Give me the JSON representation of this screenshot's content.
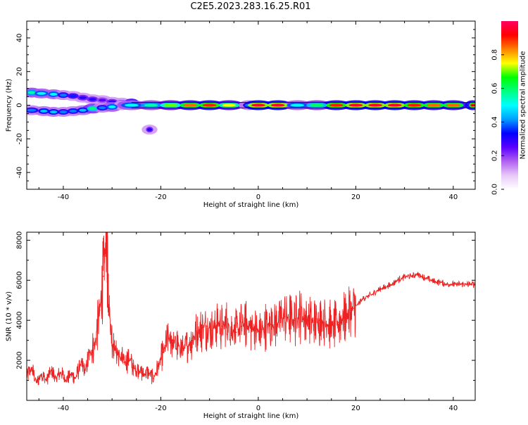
{
  "figure": {
    "title": "C2E5.2023.283.16.25.R01"
  },
  "chart_data": [
    {
      "type": "heatmap",
      "title": "",
      "xlabel": "Height of straight line (km)",
      "ylabel": "Frequency (Hz)",
      "xlim": [
        -47.5,
        44.5
      ],
      "ylim": [
        -50,
        50
      ],
      "xticks": [
        -40,
        -20,
        0,
        20,
        40
      ],
      "yticks": [
        -40,
        -20,
        0,
        20,
        40
      ],
      "grid": false,
      "colorbar": {
        "label": "Normalized spectral amplitude",
        "range": [
          0,
          1
        ],
        "ticks": [
          0.0,
          0.2,
          0.4,
          0.6,
          0.8
        ],
        "colormap": [
          "#ffffff",
          "#e8c8f8",
          "#b060f0",
          "#5a00ff",
          "#0000ff",
          "#00a0ff",
          "#00ffff",
          "#00ff80",
          "#00ff00",
          "#ffff00",
          "#ff8000",
          "#ff0000",
          "#ff0060"
        ]
      },
      "features": [
        {
          "name": "upper branch",
          "x": [
            -46.5,
            -44.5,
            -42,
            -40,
            -38,
            -36,
            -34,
            -32,
            -30,
            -28,
            -26
          ],
          "y": [
            7.5,
            7,
            6.5,
            6,
            5.5,
            4.5,
            3.5,
            3,
            2,
            1.5,
            1
          ],
          "amplitude": [
            0.55,
            0.5,
            0.5,
            0.4,
            0.35,
            0.3,
            0.3,
            0.25,
            0.3,
            0.3,
            0.8
          ]
        },
        {
          "name": "lower branch",
          "x": [
            -46.5,
            -44,
            -42,
            -40,
            -38,
            -36,
            -34,
            -32,
            -30,
            -28
          ],
          "y": [
            -3,
            -3.5,
            -4,
            -4,
            -3.5,
            -3,
            -2,
            -1.5,
            -1,
            0
          ],
          "amplitude": [
            0.4,
            0.45,
            0.45,
            0.4,
            0.4,
            0.45,
            0.6,
            0.4,
            0.5,
            0.3
          ]
        },
        {
          "name": "central line",
          "x": [
            -26,
            -22,
            -18,
            -14,
            -10,
            -6,
            -2,
            0,
            4,
            8,
            12,
            16,
            20,
            24,
            28,
            32,
            36,
            40,
            44
          ],
          "y": [
            0,
            0,
            0,
            0,
            0,
            0,
            0,
            0,
            0,
            0,
            0,
            0,
            0,
            0,
            0,
            0,
            0,
            0,
            0
          ],
          "amplitude": [
            0.5,
            0.55,
            0.7,
            0.85,
            0.9,
            0.75,
            0.4,
            0.95,
            0.95,
            0.5,
            0.6,
            0.9,
            0.95,
            0.95,
            0.95,
            0.9,
            0.85,
            0.85,
            0.9
          ]
        },
        {
          "name": "blip",
          "x": [
            -22.3
          ],
          "y": [
            -14.5
          ],
          "amplitude": [
            0.3
          ]
        }
      ]
    },
    {
      "type": "line",
      "title": "",
      "xlabel": "Height of straight line (km)",
      "ylabel": "SNR (10 * v/v)",
      "xlim": [
        -47.5,
        44.5
      ],
      "ylim": [
        0,
        8400
      ],
      "xticks": [
        -40,
        -20,
        0,
        20,
        40
      ],
      "yticks": [
        2000,
        4000,
        6000,
        8000
      ],
      "grid": false,
      "series": [
        {
          "color": "#ee2222",
          "x": [
            -47.5,
            -46.5,
            -45.5,
            -44.5,
            -43.5,
            -42.5,
            -41.5,
            -40.5,
            -39.5,
            -38.5,
            -37.5,
            -36.5,
            -35.5,
            -34.5,
            -33.5,
            -32.5,
            -31.8,
            -31.2,
            -30.8,
            -30.3,
            -29.5,
            -28.5,
            -27.5,
            -26.5,
            -25.5,
            -24.5,
            -23.5,
            -22.5,
            -21.5,
            -20.5,
            -19.5,
            -18.5,
            -17.5,
            -16.5,
            -15.5,
            -14.5,
            -13.5,
            -12.5,
            -11.5,
            -10.5,
            -9.5,
            -8.5,
            -7.5,
            -6.5,
            -5.5,
            -4.5,
            -3.5,
            -2.5,
            -1.5,
            -0.5,
            0.5,
            1.5,
            2.5,
            3.5,
            4.5,
            5.5,
            6.5,
            7.5,
            8.5,
            9.5,
            10.5,
            11.5,
            12.5,
            13.5,
            14.5,
            15.5,
            16.5,
            17.5,
            18.5,
            19.5,
            20.5,
            21.5,
            22.5,
            23.5,
            24.5,
            25.5,
            26.5,
            27.5,
            28.5,
            29.5,
            30.5,
            31.5,
            32.5,
            33.5,
            34.5,
            35.5,
            36.5,
            37.5,
            38.5,
            39.5,
            40.5,
            41.5,
            42.5,
            43.5,
            44.5
          ],
          "y": [
            1200,
            1600,
            900,
            1300,
            1000,
            1500,
            1100,
            1400,
            1000,
            1300,
            1100,
            1800,
            1500,
            2400,
            2800,
            4500,
            6200,
            8200,
            6000,
            3500,
            2600,
            2200,
            1900,
            2100,
            1600,
            1500,
            1300,
            1400,
            1100,
            1700,
            2400,
            3100,
            3000,
            2700,
            2600,
            2700,
            3100,
            3400,
            3600,
            3700,
            3500,
            3900,
            3700,
            3800,
            3600,
            3400,
            3700,
            3800,
            3600,
            3500,
            3400,
            3700,
            3800,
            3800,
            4000,
            4200,
            4100,
            4000,
            4300,
            4100,
            4000,
            3900,
            4000,
            3900,
            3800,
            3700,
            3900,
            4100,
            4300,
            4600,
            4800,
            5100,
            5200,
            5300,
            5500,
            5600,
            5700,
            5800,
            6000,
            6100,
            6200,
            6200,
            6300,
            6200,
            6100,
            6000,
            5900,
            5900,
            5800,
            5800,
            5800,
            5800,
            5800,
            5800,
            5800
          ]
        }
      ]
    }
  ]
}
